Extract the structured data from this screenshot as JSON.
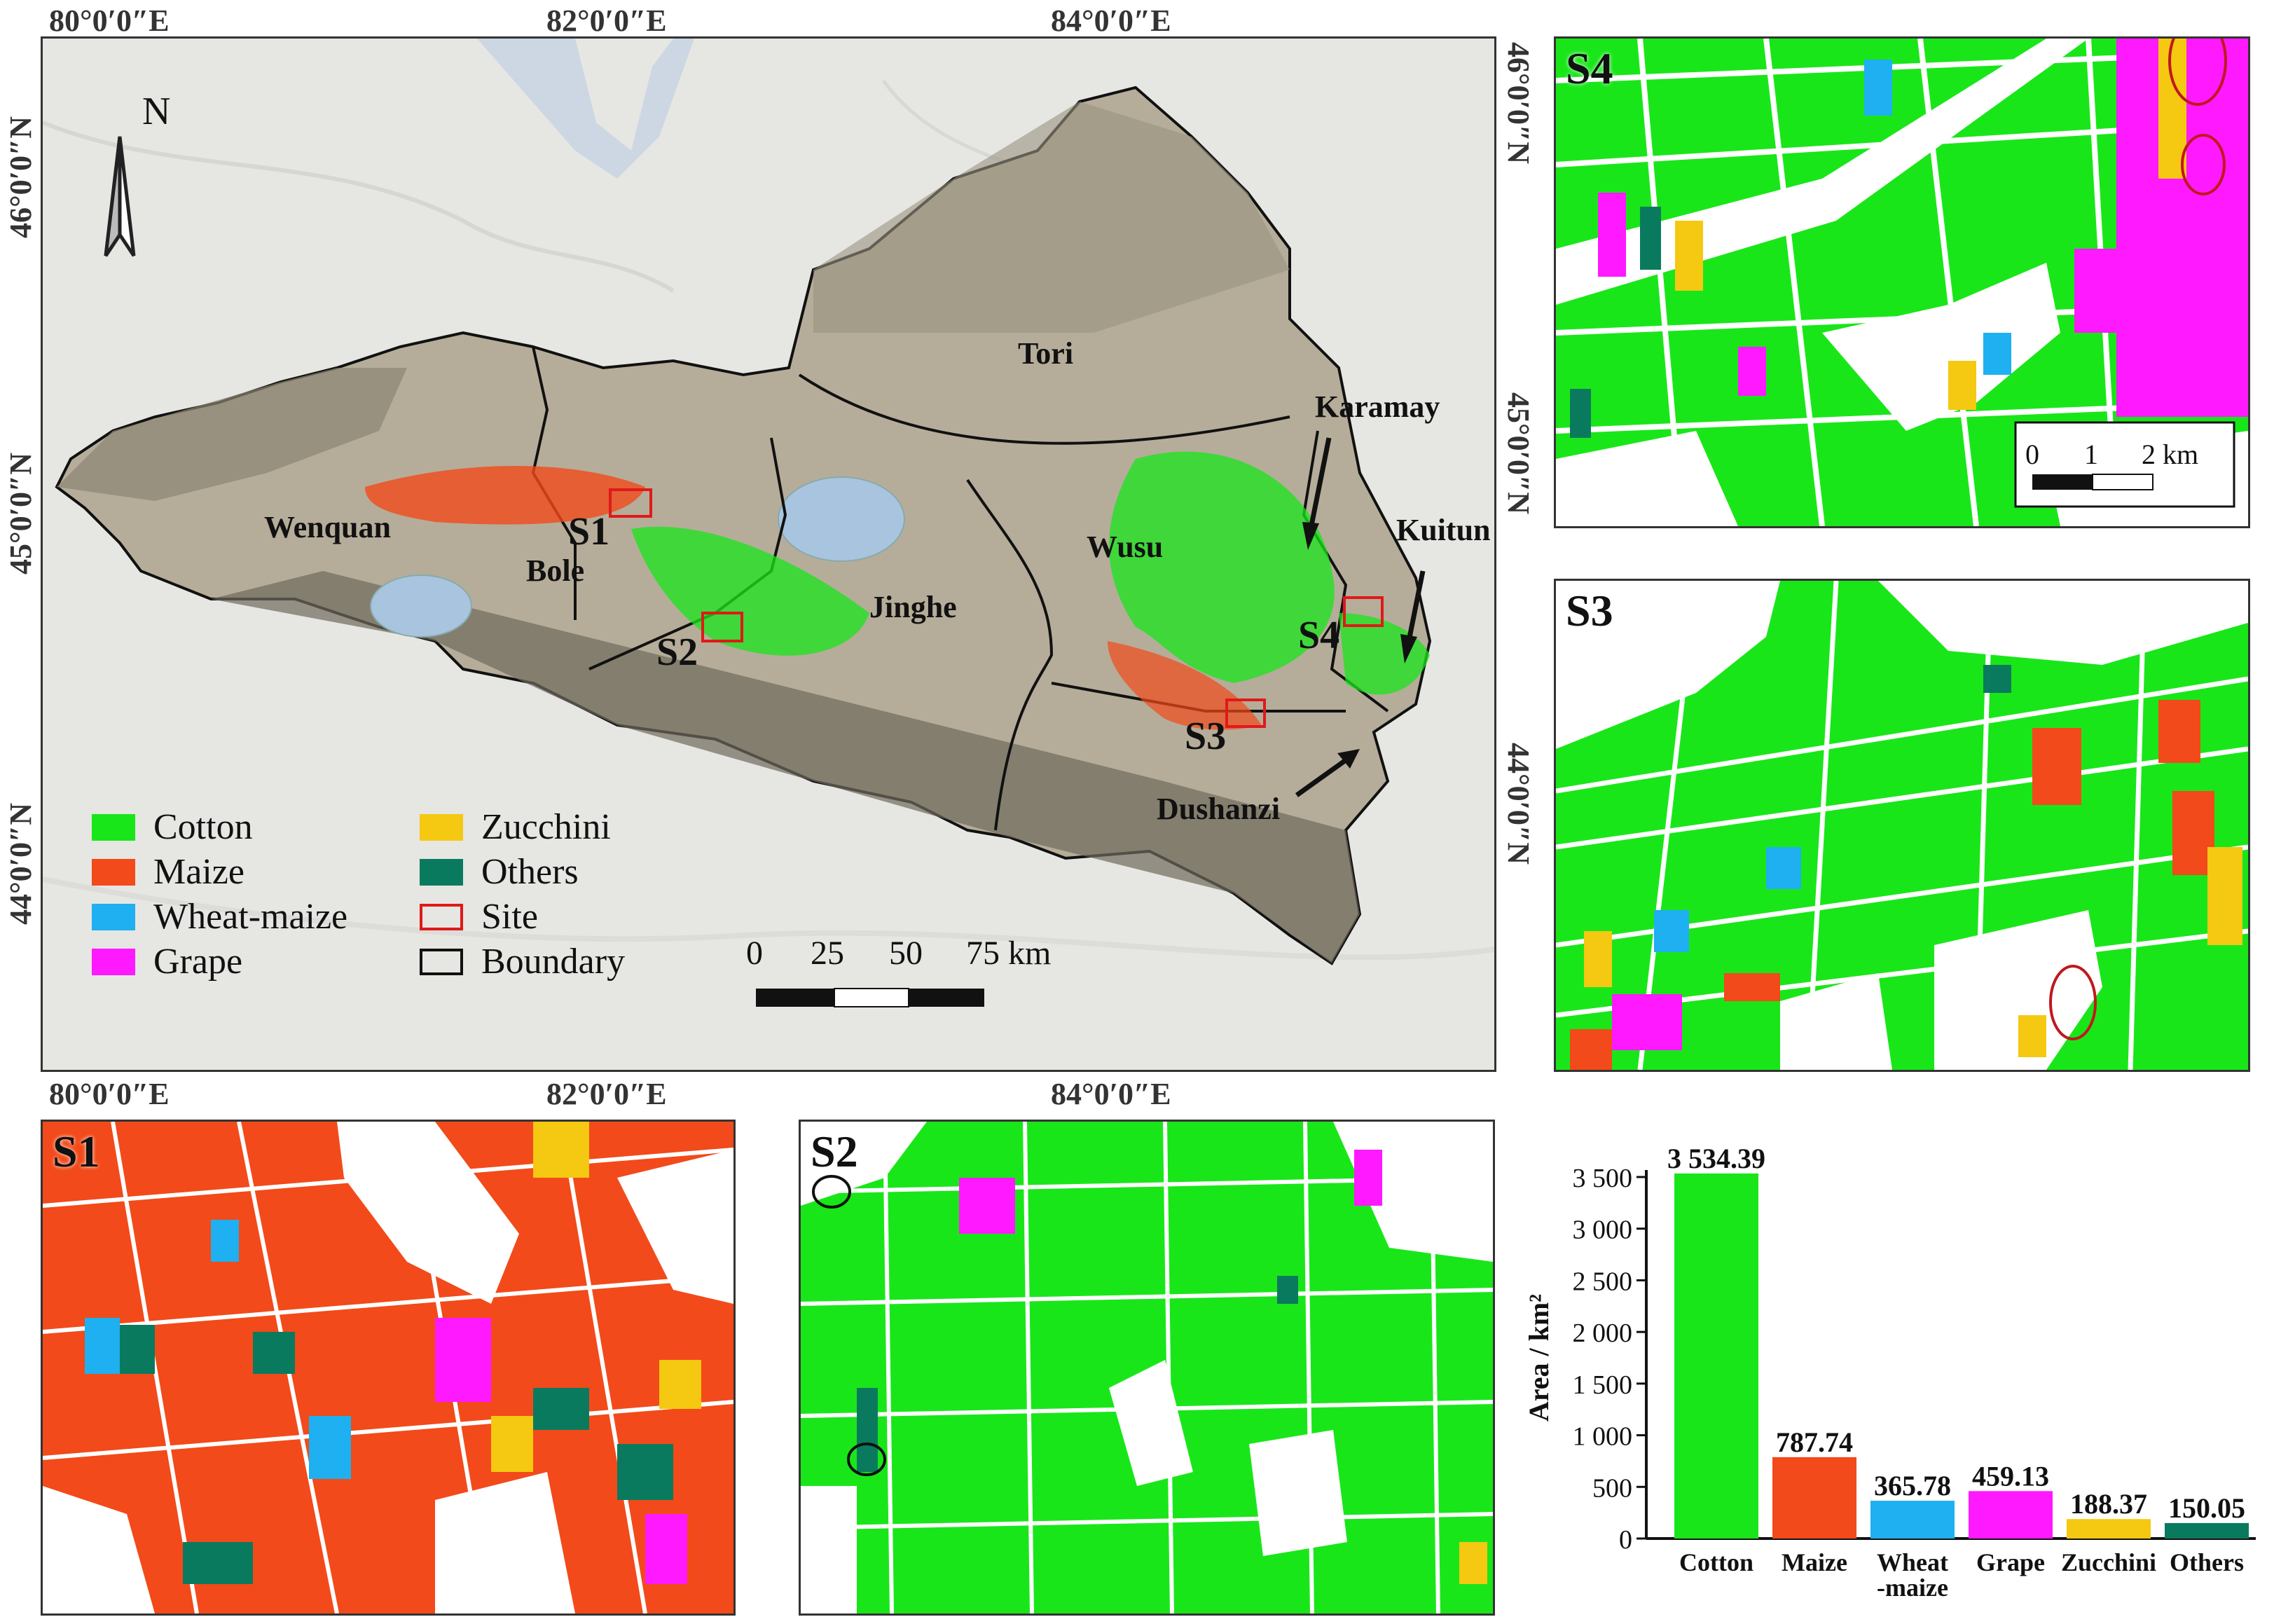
{
  "map": {
    "top_ticks": [
      "80°0′0″E",
      "82°0′0″E",
      "84°0′0″E"
    ],
    "bottom_ticks": [
      "80°0′0″E",
      "82°0′0″E",
      "84°0′0″E"
    ],
    "left_ticks": [
      "46°0′0″N",
      "45°0′0″N",
      "44°0′0″N"
    ],
    "right_ticks": [
      "46°0′0″N",
      "45°0′0″N",
      "44°0′0″N"
    ],
    "north_label": "N",
    "regions": [
      "Tori",
      "Wenquan",
      "Bole",
      "Jinghe",
      "Wusu",
      "Karamay",
      "Kuitun",
      "Dushanzi"
    ],
    "sites": [
      "S1",
      "S2",
      "S3",
      "S4"
    ],
    "scale_labels": [
      "0",
      "25",
      "50",
      "75 km"
    ],
    "legend": [
      {
        "label": "Cotton",
        "color": "#19e619",
        "type": "fill"
      },
      {
        "label": "Maize",
        "color": "#f24a1a",
        "type": "fill"
      },
      {
        "label": "Wheat-maize",
        "color": "#1eb0f0",
        "type": "fill"
      },
      {
        "label": "Grape",
        "color": "#ff19ff",
        "type": "fill"
      },
      {
        "label": "Zucchini",
        "color": "#f5c811",
        "type": "fill"
      },
      {
        "label": "Others",
        "color": "#0a7a5e",
        "type": "fill"
      },
      {
        "label": "Site",
        "color": "#e01919",
        "type": "outline"
      },
      {
        "label": "Boundary",
        "color": "#111111",
        "type": "outline"
      }
    ]
  },
  "insets": {
    "s4": {
      "label": "S4",
      "scale_labels": [
        "0",
        "1",
        "2 km"
      ]
    },
    "s3": {
      "label": "S3"
    },
    "s1": {
      "label": "S1"
    },
    "s2": {
      "label": "S2"
    }
  },
  "chart_data": {
    "type": "bar",
    "categories": [
      "Cotton",
      "Maize",
      "Wheat\n-maize",
      "Grape",
      "Zucchini",
      "Others"
    ],
    "values": [
      3534.39,
      787.74,
      365.78,
      459.13,
      188.37,
      150.05
    ],
    "value_labels": [
      "3 534.39",
      "787.74",
      "365.78",
      "459.13",
      "188.37",
      "150.05"
    ],
    "colors": [
      "#19e619",
      "#f24a1a",
      "#1eb0f0",
      "#ff19ff",
      "#f5c811",
      "#0a7a5e"
    ],
    "ylabel": "Area / km²",
    "ylim": [
      0,
      3500
    ],
    "yticks": [
      "0",
      "500",
      "1 000",
      "1 500",
      "2 000",
      "2 500",
      "3 000",
      "3 500"
    ]
  }
}
